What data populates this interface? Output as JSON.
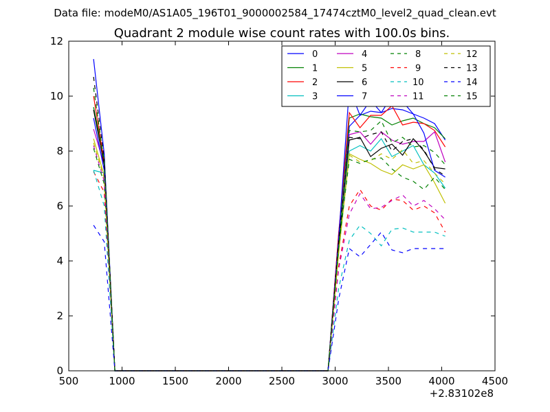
{
  "suptitle": "Data file: modeM0/AS1A05_196T01_9000002584_17474cztM0_level2_quad_clean.evt",
  "chart_data": {
    "type": "line",
    "title": "Quadrant 2 module wise count rates with 100.0s bins.",
    "xlabel": "",
    "ylabel": "",
    "x_offset_label": "+2.83102e8",
    "xlim": [
      500,
      4500
    ],
    "ylim": [
      0,
      12
    ],
    "x_ticks": [
      500,
      1000,
      1500,
      2000,
      2500,
      3000,
      3500,
      4000,
      4500
    ],
    "y_ticks": [
      0,
      2,
      4,
      6,
      8,
      10,
      12
    ],
    "x_tick_labels": [
      "500",
      "1000",
      "1500",
      "2000",
      "2500",
      "3000",
      "3500",
      "4000",
      "4500"
    ],
    "y_tick_labels": [
      "0",
      "2",
      "4",
      "6",
      "8",
      "10",
      "12"
    ],
    "grid": false,
    "legend_position": "top-right",
    "legend_columns": 4,
    "x": [
      733,
      833,
      933,
      1033,
      1133,
      1233,
      1333,
      1433,
      1533,
      1633,
      1733,
      1833,
      1933,
      2033,
      2133,
      2233,
      2333,
      2433,
      2533,
      2633,
      2733,
      2833,
      2933,
      3033,
      3133,
      3233,
      3333,
      3433,
      3533,
      3633,
      3733,
      3833,
      3933,
      4033
    ],
    "series": [
      {
        "name": "0",
        "color": "#0000ff",
        "dash": "solid",
        "values": [
          11.35,
          7.9,
          0,
          0,
          0,
          0,
          0,
          0,
          0,
          0,
          0,
          0,
          0,
          0,
          0,
          0,
          0,
          0,
          0,
          0,
          0,
          0,
          0,
          5.0,
          8.9,
          9.3,
          9.45,
          9.4,
          9.55,
          9.5,
          9.35,
          9.2,
          9.0,
          8.4
        ]
      },
      {
        "name": "1",
        "color": "#008000",
        "dash": "solid",
        "values": [
          9.6,
          7.7,
          0,
          0,
          0,
          0,
          0,
          0,
          0,
          0,
          0,
          0,
          0,
          0,
          0,
          0,
          0,
          0,
          0,
          0,
          0,
          0,
          0,
          4.9,
          9.2,
          9.35,
          9.25,
          9.2,
          8.95,
          9.1,
          9.2,
          9.0,
          8.85,
          8.45
        ]
      },
      {
        "name": "2",
        "color": "#ff0000",
        "dash": "solid",
        "values": [
          10.0,
          7.6,
          0,
          0,
          0,
          0,
          0,
          0,
          0,
          0,
          0,
          0,
          0,
          0,
          0,
          0,
          0,
          0,
          0,
          0,
          0,
          0,
          0,
          5.0,
          9.4,
          8.85,
          9.3,
          9.3,
          9.65,
          8.95,
          9.05,
          9.0,
          8.75,
          8.15
        ]
      },
      {
        "name": "3",
        "color": "#00bfbf",
        "dash": "solid",
        "values": [
          7.3,
          7.2,
          0,
          0,
          0,
          0,
          0,
          0,
          0,
          0,
          0,
          0,
          0,
          0,
          0,
          0,
          0,
          0,
          0,
          0,
          0,
          0,
          0,
          4.3,
          8.0,
          8.2,
          8.0,
          8.45,
          7.8,
          8.0,
          8.2,
          7.5,
          7.2,
          6.65
        ]
      },
      {
        "name": "4",
        "color": "#bf00bf",
        "dash": "solid",
        "values": [
          8.8,
          7.5,
          0,
          0,
          0,
          0,
          0,
          0,
          0,
          0,
          0,
          0,
          0,
          0,
          0,
          0,
          0,
          0,
          0,
          0,
          0,
          0,
          0,
          4.6,
          8.6,
          8.7,
          8.25,
          8.7,
          8.4,
          8.25,
          8.35,
          8.35,
          8.7,
          7.6
        ]
      },
      {
        "name": "5",
        "color": "#bfbf00",
        "dash": "solid",
        "values": [
          8.45,
          7.1,
          0,
          0,
          0,
          0,
          0,
          0,
          0,
          0,
          0,
          0,
          0,
          0,
          0,
          0,
          0,
          0,
          0,
          0,
          0,
          0,
          0,
          4.3,
          7.9,
          7.7,
          7.55,
          7.3,
          7.15,
          7.5,
          7.35,
          7.5,
          6.85,
          6.1
        ]
      },
      {
        "name": "6",
        "color": "#000000",
        "dash": "solid",
        "values": [
          9.5,
          7.5,
          0,
          0,
          0,
          0,
          0,
          0,
          0,
          0,
          0,
          0,
          0,
          0,
          0,
          0,
          0,
          0,
          0,
          0,
          0,
          0,
          0,
          4.6,
          8.4,
          8.5,
          7.8,
          8.1,
          8.25,
          7.85,
          8.45,
          8.0,
          7.4,
          7.35
        ]
      },
      {
        "name": "7",
        "color": "#0000ff",
        "dash": "solid",
        "values": [
          9.2,
          7.3,
          0,
          0,
          0,
          0,
          0,
          0,
          0,
          0,
          0,
          0,
          0,
          0,
          0,
          0,
          0,
          0,
          0,
          0,
          0,
          0,
          0,
          4.8,
          10.3,
          9.3,
          9.85,
          9.4,
          10.0,
          9.8,
          9.35,
          8.65,
          7.3,
          7.05
        ]
      },
      {
        "name": "8",
        "color": "#008000",
        "dash": "dashed",
        "values": [
          8.1,
          6.8,
          0,
          0,
          0,
          0,
          0,
          0,
          0,
          0,
          0,
          0,
          0,
          0,
          0,
          0,
          0,
          0,
          0,
          0,
          0,
          0,
          0,
          4.5,
          8.75,
          8.7,
          8.75,
          9.1,
          8.3,
          8.5,
          8.15,
          8.2,
          7.95,
          7.5
        ]
      },
      {
        "name": "9",
        "color": "#ff0000",
        "dash": "dashed",
        "values": [
          7.25,
          6.5,
          0,
          0,
          0,
          0,
          0,
          0,
          0,
          0,
          0,
          0,
          0,
          0,
          0,
          0,
          0,
          0,
          0,
          0,
          0,
          0,
          0,
          3.8,
          6.0,
          6.6,
          6.0,
          5.85,
          6.25,
          6.2,
          5.85,
          6.0,
          5.75,
          5.05
        ]
      },
      {
        "name": "10",
        "color": "#00bfbf",
        "dash": "dashed",
        "values": [
          7.3,
          6.0,
          0,
          0,
          0,
          0,
          0,
          0,
          0,
          0,
          0,
          0,
          0,
          0,
          0,
          0,
          0,
          0,
          0,
          0,
          0,
          0,
          0,
          3.0,
          4.75,
          5.3,
          5.0,
          4.55,
          5.15,
          5.2,
          5.05,
          5.05,
          5.05,
          4.9
        ]
      },
      {
        "name": "11",
        "color": "#bf00bf",
        "dash": "dashed",
        "values": [
          8.2,
          6.9,
          0,
          0,
          0,
          0,
          0,
          0,
          0,
          0,
          0,
          0,
          0,
          0,
          0,
          0,
          0,
          0,
          0,
          0,
          0,
          0,
          0,
          3.7,
          5.7,
          6.45,
          5.9,
          5.95,
          6.2,
          6.4,
          6.0,
          6.2,
          5.9,
          5.5
        ]
      },
      {
        "name": "12",
        "color": "#bfbf00",
        "dash": "dashed",
        "values": [
          8.3,
          7.0,
          0,
          0,
          0,
          0,
          0,
          0,
          0,
          0,
          0,
          0,
          0,
          0,
          0,
          0,
          0,
          0,
          0,
          0,
          0,
          0,
          0,
          4.3,
          7.85,
          7.6,
          7.65,
          7.9,
          7.7,
          8.05,
          7.55,
          7.65,
          7.2,
          6.8
        ]
      },
      {
        "name": "13",
        "color": "#000000",
        "dash": "dashed",
        "values": [
          10.7,
          7.7,
          0,
          0,
          0,
          0,
          0,
          0,
          0,
          0,
          0,
          0,
          0,
          0,
          0,
          0,
          0,
          0,
          0,
          0,
          0,
          0,
          0,
          4.7,
          8.5,
          8.45,
          8.6,
          8.7,
          8.0,
          8.35,
          8.45,
          8.05,
          7.35,
          7.1
        ]
      },
      {
        "name": "14",
        "color": "#0000ff",
        "dash": "dashed",
        "values": [
          5.3,
          4.7,
          0,
          0,
          0,
          0,
          0,
          0,
          0,
          0,
          0,
          0,
          0,
          0,
          0,
          0,
          0,
          0,
          0,
          0,
          0,
          0,
          0,
          2.6,
          4.45,
          4.15,
          4.6,
          5.05,
          4.4,
          4.3,
          4.45,
          4.45,
          4.45,
          4.45
        ]
      },
      {
        "name": "15",
        "color": "#008000",
        "dash": "dashed",
        "values": [
          10.3,
          7.6,
          0,
          0,
          0,
          0,
          0,
          0,
          0,
          0,
          0,
          0,
          0,
          0,
          0,
          0,
          0,
          0,
          0,
          0,
          0,
          0,
          0,
          4.5,
          7.7,
          7.55,
          7.7,
          7.75,
          7.35,
          7.05,
          6.9,
          6.6,
          7.05,
          6.6
        ]
      }
    ]
  }
}
